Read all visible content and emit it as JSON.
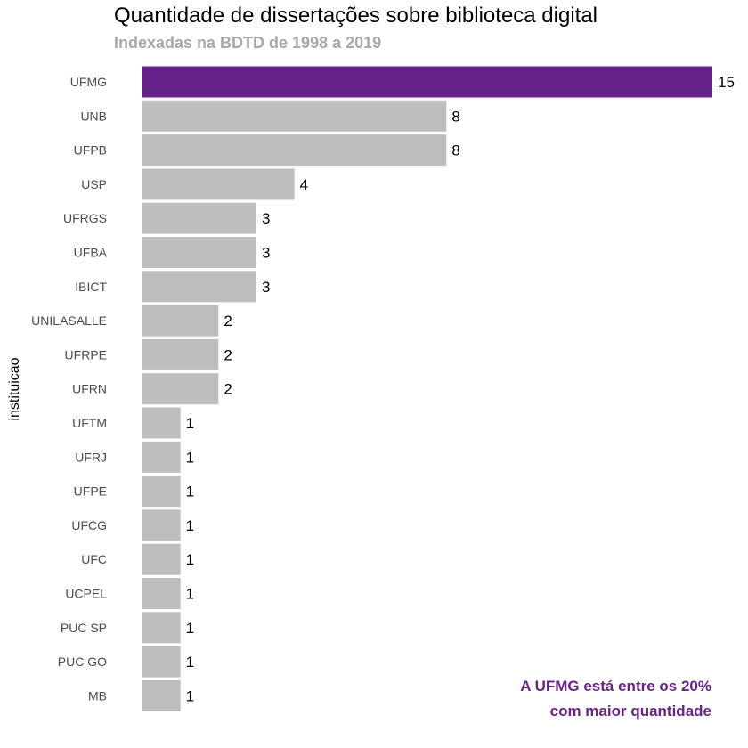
{
  "chart_data": {
    "type": "bar",
    "orientation": "horizontal",
    "title": "Quantidade de dissertações sobre biblioteca digital",
    "subtitle": "Indexadas na BDTD de 1998 a 2019",
    "ylabel": "instituicao",
    "xlabel": "",
    "categories": [
      "UFMG",
      "UNB",
      "UFPB",
      "USP",
      "UFRGS",
      "UFBA",
      "IBICT",
      "UNILASALLE",
      "UFRPE",
      "UFRN",
      "UFTM",
      "UFRJ",
      "UFPE",
      "UFCG",
      "UFC",
      "UCPEL",
      "PUC SP",
      "PUC GO",
      "MB"
    ],
    "values": [
      15,
      8,
      8,
      4,
      3,
      3,
      3,
      2,
      2,
      2,
      1,
      1,
      1,
      1,
      1,
      1,
      1,
      1,
      1
    ],
    "xlim": [
      0,
      15
    ],
    "grid": false,
    "legend": "none",
    "highlight_category": "UFMG",
    "colors": {
      "highlight": "#68228b",
      "default": "#bebebe"
    },
    "annotation": [
      "A UFMG está entre os 20%",
      "com maior quantidade"
    ]
  }
}
